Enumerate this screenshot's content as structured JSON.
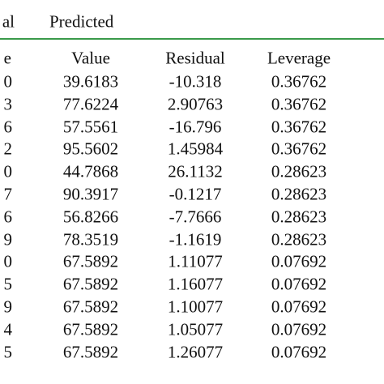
{
  "table": {
    "header_top": [
      "al",
      "Predicted"
    ],
    "columns": [
      "e",
      "Value",
      "Residual",
      "Leverage"
    ],
    "rows": [
      [
        "0",
        "39.6183",
        "-10.318",
        "0.36762"
      ],
      [
        "3",
        "77.6224",
        "2.90763",
        "0.36762"
      ],
      [
        "6",
        "57.5561",
        "-16.796",
        "0.36762"
      ],
      [
        "2",
        "95.5602",
        "1.45984",
        "0.36762"
      ],
      [
        "0",
        "44.7868",
        "26.1132",
        "0.28623"
      ],
      [
        "7",
        "90.3917",
        "-0.1217",
        "0.28623"
      ],
      [
        "6",
        "56.8266",
        "-7.7666",
        "0.28623"
      ],
      [
        "9",
        "78.3519",
        "-1.1619",
        "0.28623"
      ],
      [
        "0",
        "67.5892",
        "1.11077",
        "0.07692"
      ],
      [
        "5",
        "67.5892",
        "1.16077",
        "0.07692"
      ],
      [
        "9",
        "67.5892",
        "1.10077",
        "0.07692"
      ],
      [
        "4",
        "67.5892",
        "1.05077",
        "0.07692"
      ],
      [
        "5",
        "67.5892",
        "1.26077",
        "0.07692"
      ]
    ]
  }
}
